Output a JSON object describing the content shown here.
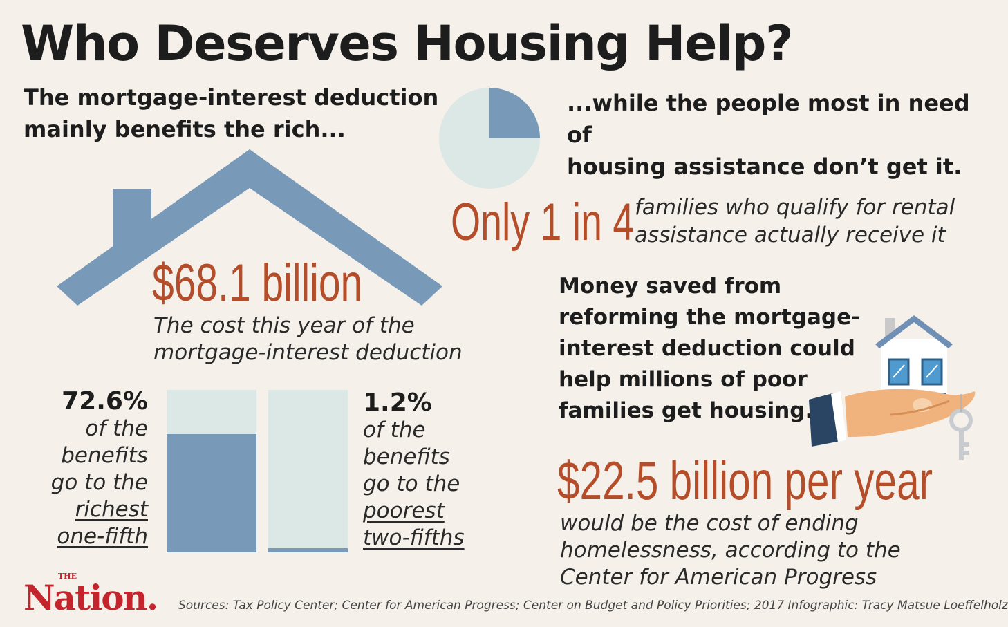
{
  "title": "Who Deserves Housing Help?",
  "left_lead": "The mortgage-interest deduction\nmainly benefits the rich...",
  "right_lead": "...while the people most in need of\nhousing assistance don’t get it.",
  "mid": {
    "amount": "$68.1 billion",
    "caption": "The cost this year of the\nmortgage-interest deduction"
  },
  "rental": {
    "big": "Only 1 in 4",
    "caption": "families who qualify for rental\nassistance actually receive it",
    "pie_fraction": 0.25
  },
  "richest": {
    "pct": "72.6%",
    "lines": [
      "of the",
      "benefits",
      "go to the"
    ],
    "underline": [
      "richest",
      "one-fifth"
    ],
    "bar_fraction": 0.726
  },
  "poorest": {
    "pct": "1.2%",
    "lines": [
      "of the",
      "benefits",
      "go to the"
    ],
    "underline": [
      "poorest",
      "two-fifths"
    ],
    "bar_fraction": 0.012
  },
  "money": {
    "heading": "Money saved from\nreforming the mortgage-\ninterest deduction could\nhelp millions of poor\nfamilies get housing.",
    "big": "$22.5 billion per year",
    "caption": "would be the cost of ending\nhomelessness, according to the\nCenter for American Progress"
  },
  "logo": {
    "the": "THE",
    "name": "Nation."
  },
  "sources": "Sources: Tax Policy Center; Center for American Progress; Center on Budget and Policy Priorities; 2017 Infographic: Tracy Matsue Loeffelholz",
  "colors": {
    "background": "#f5f1ea",
    "accent": "#b34d2a",
    "house_blue": "#7899b8",
    "light_teal": "#dce8e6",
    "nation_red": "#c4242b"
  }
}
